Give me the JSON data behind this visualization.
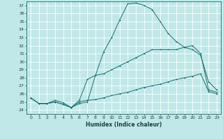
{
  "xlabel": "Humidex (Indice chaleur)",
  "bg_color": "#c0e8e8",
  "grid_color": "#ffffff",
  "line_color": "#1a7070",
  "xlim": [
    -0.5,
    23.5
  ],
  "ylim": [
    23.5,
    37.5
  ],
  "xticks": [
    0,
    1,
    2,
    3,
    4,
    5,
    6,
    7,
    8,
    9,
    10,
    11,
    12,
    13,
    14,
    15,
    16,
    17,
    18,
    19,
    20,
    21,
    22,
    23
  ],
  "yticks": [
    24,
    25,
    26,
    27,
    28,
    29,
    30,
    31,
    32,
    33,
    34,
    35,
    36,
    37
  ],
  "line1_x": [
    0,
    1,
    2,
    3,
    4,
    5,
    6,
    7,
    8,
    9,
    10,
    11,
    12,
    13,
    14,
    15,
    16,
    17,
    18,
    19,
    20,
    21,
    22,
    23
  ],
  "line1_y": [
    25.5,
    24.8,
    24.8,
    25.2,
    24.9,
    24.3,
    24.8,
    25.0,
    28.3,
    31.2,
    33.0,
    35.2,
    37.2,
    37.3,
    37.0,
    36.5,
    35.0,
    33.5,
    32.5,
    31.8,
    31.5,
    30.8,
    27.5,
    26.5
  ],
  "line2_x": [
    0,
    1,
    2,
    3,
    4,
    5,
    6,
    7,
    8,
    9,
    10,
    11,
    12,
    13,
    14,
    15,
    16,
    17,
    18,
    19,
    20,
    21,
    22,
    23
  ],
  "line2_y": [
    25.5,
    24.8,
    24.8,
    25.0,
    24.7,
    24.3,
    25.2,
    27.8,
    28.3,
    28.5,
    29.0,
    29.5,
    30.0,
    30.5,
    31.0,
    31.5,
    31.5,
    31.5,
    31.5,
    31.8,
    32.0,
    31.0,
    26.5,
    26.2
  ],
  "line3_x": [
    0,
    1,
    2,
    3,
    4,
    5,
    6,
    7,
    8,
    9,
    10,
    11,
    12,
    13,
    14,
    15,
    16,
    17,
    18,
    19,
    20,
    21,
    22,
    23
  ],
  "line3_y": [
    25.5,
    24.8,
    24.8,
    25.0,
    24.7,
    24.3,
    25.0,
    25.2,
    25.3,
    25.5,
    25.8,
    26.0,
    26.2,
    26.5,
    26.8,
    27.0,
    27.2,
    27.5,
    27.8,
    28.0,
    28.2,
    28.5,
    26.3,
    26.0
  ],
  "xlabel_fontsize": 5.5,
  "tick_fontsize": 4.5,
  "lw": 0.7,
  "ms": 2.0
}
